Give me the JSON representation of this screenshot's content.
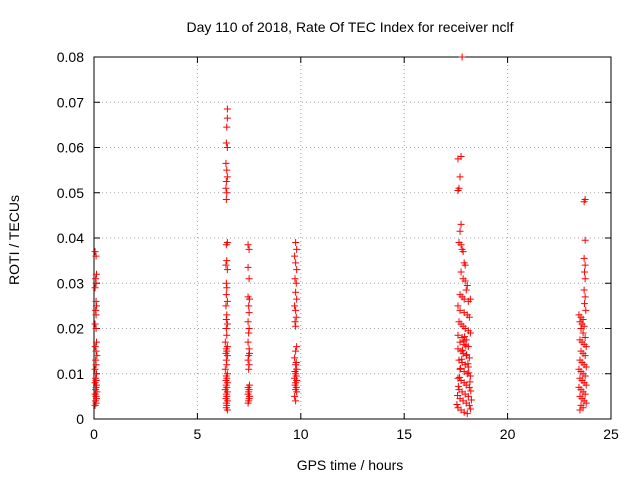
{
  "chart_data": {
    "type": "scatter",
    "title": "Day 110 of 2018, Rate Of TEC Index for receiver nclf",
    "xlabel": "GPS time / hours",
    "ylabel": "ROTI / TECUs",
    "xlim": [
      0,
      25
    ],
    "ylim": [
      0,
      0.08
    ],
    "x_ticks": [
      0,
      5,
      10,
      15,
      20,
      25
    ],
    "x_tick_labels": [
      "0",
      "5",
      "10",
      "15",
      "20",
      "25"
    ],
    "y_ticks": [
      0,
      0.01,
      0.02,
      0.03,
      0.04,
      0.05,
      0.06,
      0.07,
      0.08
    ],
    "y_tick_labels": [
      "0",
      "0.01",
      "0.02",
      "0.03",
      "0.04",
      "0.05",
      "0.06",
      "0.07",
      "0.08"
    ],
    "grid": true,
    "marker": "+",
    "marker_color": "#ff0000",
    "series": [
      {
        "name": "ROTI",
        "points": [
          [
            0.05,
            0.037
          ],
          [
            0.1,
            0.036
          ],
          [
            0.12,
            0.032
          ],
          [
            0.08,
            0.031
          ],
          [
            0.1,
            0.03
          ],
          [
            0.05,
            0.029
          ],
          [
            0.1,
            0.026
          ],
          [
            0.12,
            0.025
          ],
          [
            0.08,
            0.024
          ],
          [
            0.1,
            0.023
          ],
          [
            0.05,
            0.021
          ],
          [
            0.1,
            0.02
          ],
          [
            0.12,
            0.017
          ],
          [
            0.06,
            0.016
          ],
          [
            0.1,
            0.015
          ],
          [
            0.14,
            0.014
          ],
          [
            0.08,
            0.013
          ],
          [
            0.1,
            0.012
          ],
          [
            0.05,
            0.011
          ],
          [
            0.12,
            0.01
          ],
          [
            0.08,
            0.009
          ],
          [
            0.1,
            0.0085
          ],
          [
            0.05,
            0.008
          ],
          [
            0.12,
            0.0075
          ],
          [
            0.1,
            0.007
          ],
          [
            0.08,
            0.0065
          ],
          [
            0.14,
            0.006
          ],
          [
            0.06,
            0.0055
          ],
          [
            0.1,
            0.005
          ],
          [
            0.12,
            0.0045
          ],
          [
            0.08,
            0.004
          ],
          [
            0.1,
            0.0035
          ],
          [
            0.05,
            0.003
          ],
          [
            6.45,
            0.0685
          ],
          [
            6.45,
            0.0665
          ],
          [
            6.42,
            0.0645
          ],
          [
            6.4,
            0.061
          ],
          [
            6.45,
            0.06
          ],
          [
            6.38,
            0.0565
          ],
          [
            6.42,
            0.055
          ],
          [
            6.45,
            0.0535
          ],
          [
            6.4,
            0.0525
          ],
          [
            6.38,
            0.051
          ],
          [
            6.42,
            0.05
          ],
          [
            6.4,
            0.0485
          ],
          [
            6.45,
            0.039
          ],
          [
            6.4,
            0.0385
          ],
          [
            6.42,
            0.035
          ],
          [
            6.38,
            0.034
          ],
          [
            6.45,
            0.033
          ],
          [
            6.4,
            0.03
          ],
          [
            6.42,
            0.029
          ],
          [
            6.4,
            0.0275
          ],
          [
            6.45,
            0.026
          ],
          [
            6.38,
            0.025
          ],
          [
            6.42,
            0.023
          ],
          [
            6.4,
            0.022
          ],
          [
            6.45,
            0.021
          ],
          [
            6.4,
            0.02
          ],
          [
            6.42,
            0.0185
          ],
          [
            6.35,
            0.017
          ],
          [
            6.45,
            0.016
          ],
          [
            6.4,
            0.0155
          ],
          [
            6.42,
            0.015
          ],
          [
            6.38,
            0.0145
          ],
          [
            6.45,
            0.014
          ],
          [
            6.4,
            0.013
          ],
          [
            6.42,
            0.012
          ],
          [
            6.35,
            0.011
          ],
          [
            6.45,
            0.01
          ],
          [
            6.4,
            0.0095
          ],
          [
            6.42,
            0.009
          ],
          [
            6.38,
            0.0085
          ],
          [
            6.45,
            0.008
          ],
          [
            6.4,
            0.0075
          ],
          [
            6.42,
            0.007
          ],
          [
            6.35,
            0.0065
          ],
          [
            6.45,
            0.006
          ],
          [
            6.4,
            0.0055
          ],
          [
            6.42,
            0.005
          ],
          [
            6.38,
            0.0045
          ],
          [
            6.45,
            0.004
          ],
          [
            6.4,
            0.0035
          ],
          [
            6.42,
            0.003
          ],
          [
            6.4,
            0.0025
          ],
          [
            6.45,
            0.002
          ],
          [
            7.45,
            0.0385
          ],
          [
            7.5,
            0.0375
          ],
          [
            7.45,
            0.0335
          ],
          [
            7.5,
            0.031
          ],
          [
            7.45,
            0.027
          ],
          [
            7.52,
            0.0265
          ],
          [
            7.48,
            0.025
          ],
          [
            7.5,
            0.0235
          ],
          [
            7.45,
            0.0215
          ],
          [
            7.5,
            0.02
          ],
          [
            7.48,
            0.019
          ],
          [
            7.45,
            0.017
          ],
          [
            7.5,
            0.0155
          ],
          [
            7.52,
            0.0145
          ],
          [
            7.48,
            0.014
          ],
          [
            7.45,
            0.013
          ],
          [
            7.5,
            0.012
          ],
          [
            7.48,
            0.011
          ],
          [
            7.52,
            0.0075
          ],
          [
            7.45,
            0.007
          ],
          [
            7.5,
            0.0065
          ],
          [
            7.48,
            0.006
          ],
          [
            7.45,
            0.0055
          ],
          [
            7.52,
            0.005
          ],
          [
            7.5,
            0.0045
          ],
          [
            7.48,
            0.004
          ],
          [
            7.45,
            0.0035
          ],
          [
            9.75,
            0.039
          ],
          [
            9.8,
            0.0375
          ],
          [
            9.7,
            0.036
          ],
          [
            9.75,
            0.0345
          ],
          [
            9.8,
            0.033
          ],
          [
            9.72,
            0.031
          ],
          [
            9.78,
            0.03
          ],
          [
            9.75,
            0.028
          ],
          [
            9.8,
            0.0265
          ],
          [
            9.7,
            0.025
          ],
          [
            9.75,
            0.024
          ],
          [
            9.78,
            0.0225
          ],
          [
            9.72,
            0.0215
          ],
          [
            9.75,
            0.0205
          ],
          [
            9.8,
            0.016
          ],
          [
            9.75,
            0.015
          ],
          [
            9.7,
            0.0135
          ],
          [
            9.78,
            0.0125
          ],
          [
            9.75,
            0.012
          ],
          [
            9.8,
            0.011
          ],
          [
            9.72,
            0.0105
          ],
          [
            9.75,
            0.01
          ],
          [
            9.78,
            0.0095
          ],
          [
            9.7,
            0.009
          ],
          [
            9.8,
            0.0085
          ],
          [
            9.75,
            0.008
          ],
          [
            9.72,
            0.0075
          ],
          [
            9.78,
            0.007
          ],
          [
            9.75,
            0.0065
          ],
          [
            9.8,
            0.006
          ],
          [
            9.7,
            0.005
          ],
          [
            9.75,
            0.004
          ],
          [
            17.8,
            0.08
          ],
          [
            17.75,
            0.058
          ],
          [
            17.6,
            0.0575
          ],
          [
            17.7,
            0.0535
          ],
          [
            17.65,
            0.051
          ],
          [
            17.6,
            0.0505
          ],
          [
            17.75,
            0.043
          ],
          [
            17.7,
            0.0415
          ],
          [
            17.65,
            0.039
          ],
          [
            17.75,
            0.0385
          ],
          [
            17.8,
            0.0375
          ],
          [
            17.85,
            0.037
          ],
          [
            17.9,
            0.0345
          ],
          [
            17.95,
            0.034
          ],
          [
            17.75,
            0.0325
          ],
          [
            17.85,
            0.031
          ],
          [
            17.95,
            0.0305
          ],
          [
            18.05,
            0.0295
          ],
          [
            18.0,
            0.0285
          ],
          [
            17.7,
            0.0275
          ],
          [
            17.8,
            0.027
          ],
          [
            17.9,
            0.0265
          ],
          [
            18.1,
            0.026
          ],
          [
            18.2,
            0.0265
          ],
          [
            17.6,
            0.025
          ],
          [
            17.7,
            0.024
          ],
          [
            17.9,
            0.0235
          ],
          [
            18.05,
            0.023
          ],
          [
            18.15,
            0.0225
          ],
          [
            17.65,
            0.0215
          ],
          [
            17.75,
            0.021
          ],
          [
            17.85,
            0.0205
          ],
          [
            17.95,
            0.02
          ],
          [
            18.1,
            0.0195
          ],
          [
            18.2,
            0.019
          ],
          [
            17.6,
            0.0185
          ],
          [
            17.8,
            0.018
          ],
          [
            18.0,
            0.0175
          ],
          [
            17.7,
            0.017
          ],
          [
            17.9,
            0.0165
          ],
          [
            18.1,
            0.016
          ],
          [
            17.6,
            0.0155
          ],
          [
            17.75,
            0.015
          ],
          [
            17.85,
            0.0145
          ],
          [
            18.0,
            0.014
          ],
          [
            18.15,
            0.0135
          ],
          [
            17.65,
            0.013
          ],
          [
            17.8,
            0.0125
          ],
          [
            17.95,
            0.012
          ],
          [
            18.1,
            0.0115
          ],
          [
            17.7,
            0.011
          ],
          [
            17.9,
            0.0105
          ],
          [
            18.05,
            0.01
          ],
          [
            18.2,
            0.0095
          ],
          [
            17.6,
            0.009
          ],
          [
            17.75,
            0.0085
          ],
          [
            17.9,
            0.008
          ],
          [
            18.0,
            0.0075
          ],
          [
            18.15,
            0.007
          ],
          [
            17.65,
            0.0065
          ],
          [
            17.8,
            0.006
          ],
          [
            17.95,
            0.0055
          ],
          [
            18.1,
            0.005
          ],
          [
            17.7,
            0.0045
          ],
          [
            17.85,
            0.004
          ],
          [
            18.0,
            0.0035
          ],
          [
            18.15,
            0.003
          ],
          [
            17.6,
            0.0025
          ],
          [
            17.75,
            0.002
          ],
          [
            17.9,
            0.0015
          ],
          [
            18.05,
            0.0012
          ],
          [
            18.2,
            0.0022
          ],
          [
            17.55,
            0.0032
          ],
          [
            18.25,
            0.0042
          ],
          [
            17.58,
            0.0052
          ],
          [
            18.22,
            0.0062
          ],
          [
            17.62,
            0.0072
          ],
          [
            18.18,
            0.0082
          ],
          [
            17.68,
            0.0092
          ],
          [
            18.12,
            0.0102
          ],
          [
            17.72,
            0.0112
          ],
          [
            18.08,
            0.0122
          ],
          [
            17.78,
            0.0132
          ],
          [
            18.02,
            0.0142
          ],
          [
            17.82,
            0.0152
          ],
          [
            17.98,
            0.0162
          ],
          [
            17.88,
            0.0172
          ],
          [
            17.92,
            0.0182
          ],
          [
            23.75,
            0.0485
          ],
          [
            23.7,
            0.048
          ],
          [
            23.75,
            0.0395
          ],
          [
            23.7,
            0.0355
          ],
          [
            23.75,
            0.034
          ],
          [
            23.72,
            0.0325
          ],
          [
            23.75,
            0.031
          ],
          [
            23.7,
            0.0285
          ],
          [
            23.75,
            0.027
          ],
          [
            23.72,
            0.0255
          ],
          [
            23.78,
            0.024
          ],
          [
            23.45,
            0.023
          ],
          [
            23.55,
            0.0225
          ],
          [
            23.65,
            0.022
          ],
          [
            23.5,
            0.0215
          ],
          [
            23.6,
            0.021
          ],
          [
            23.7,
            0.0205
          ],
          [
            23.55,
            0.02
          ],
          [
            23.65,
            0.019
          ],
          [
            23.75,
            0.018
          ],
          [
            23.5,
            0.0175
          ],
          [
            23.6,
            0.017
          ],
          [
            23.7,
            0.0165
          ],
          [
            23.8,
            0.016
          ],
          [
            23.55,
            0.015
          ],
          [
            23.65,
            0.0145
          ],
          [
            23.75,
            0.014
          ],
          [
            23.5,
            0.013
          ],
          [
            23.6,
            0.0125
          ],
          [
            23.7,
            0.012
          ],
          [
            23.8,
            0.0115
          ],
          [
            23.45,
            0.011
          ],
          [
            23.55,
            0.0105
          ],
          [
            23.65,
            0.01
          ],
          [
            23.75,
            0.0095
          ],
          [
            23.5,
            0.009
          ],
          [
            23.6,
            0.0085
          ],
          [
            23.7,
            0.008
          ],
          [
            23.8,
            0.0075
          ],
          [
            23.45,
            0.007
          ],
          [
            23.55,
            0.0065
          ],
          [
            23.65,
            0.006
          ],
          [
            23.75,
            0.0055
          ],
          [
            23.5,
            0.005
          ],
          [
            23.6,
            0.0045
          ],
          [
            23.7,
            0.004
          ],
          [
            23.8,
            0.0035
          ],
          [
            23.55,
            0.003
          ],
          [
            23.65,
            0.0025
          ],
          [
            23.5,
            0.002
          ]
        ]
      }
    ]
  }
}
